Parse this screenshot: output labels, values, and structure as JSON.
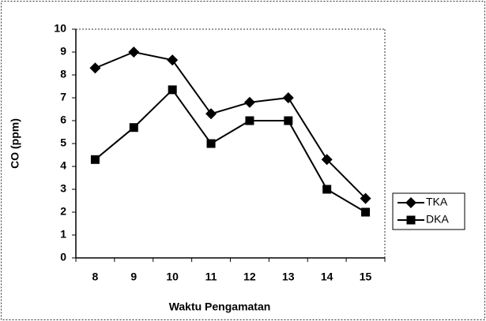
{
  "chart_data": {
    "type": "line",
    "xlabel": "Waktu Pengamatan",
    "ylabel": "CO (ppm)",
    "categories": [
      "8",
      "9",
      "10",
      "11",
      "12",
      "13",
      "14",
      "15"
    ],
    "series": [
      {
        "name": "TKA",
        "color": "#000000",
        "marker": "diamond",
        "values": [
          8.3,
          9.0,
          8.65,
          6.3,
          6.8,
          7.0,
          4.3,
          2.6
        ]
      },
      {
        "name": "DKA",
        "color": "#000000",
        "marker": "square",
        "values": [
          4.3,
          5.7,
          7.35,
          5.0,
          6.0,
          6.0,
          3.0,
          2.0
        ]
      }
    ],
    "ylim": [
      0,
      10
    ],
    "yticks": [
      0,
      1,
      2,
      3,
      4,
      5,
      6,
      7,
      8,
      9,
      10
    ],
    "grid": false,
    "legend": "right"
  }
}
